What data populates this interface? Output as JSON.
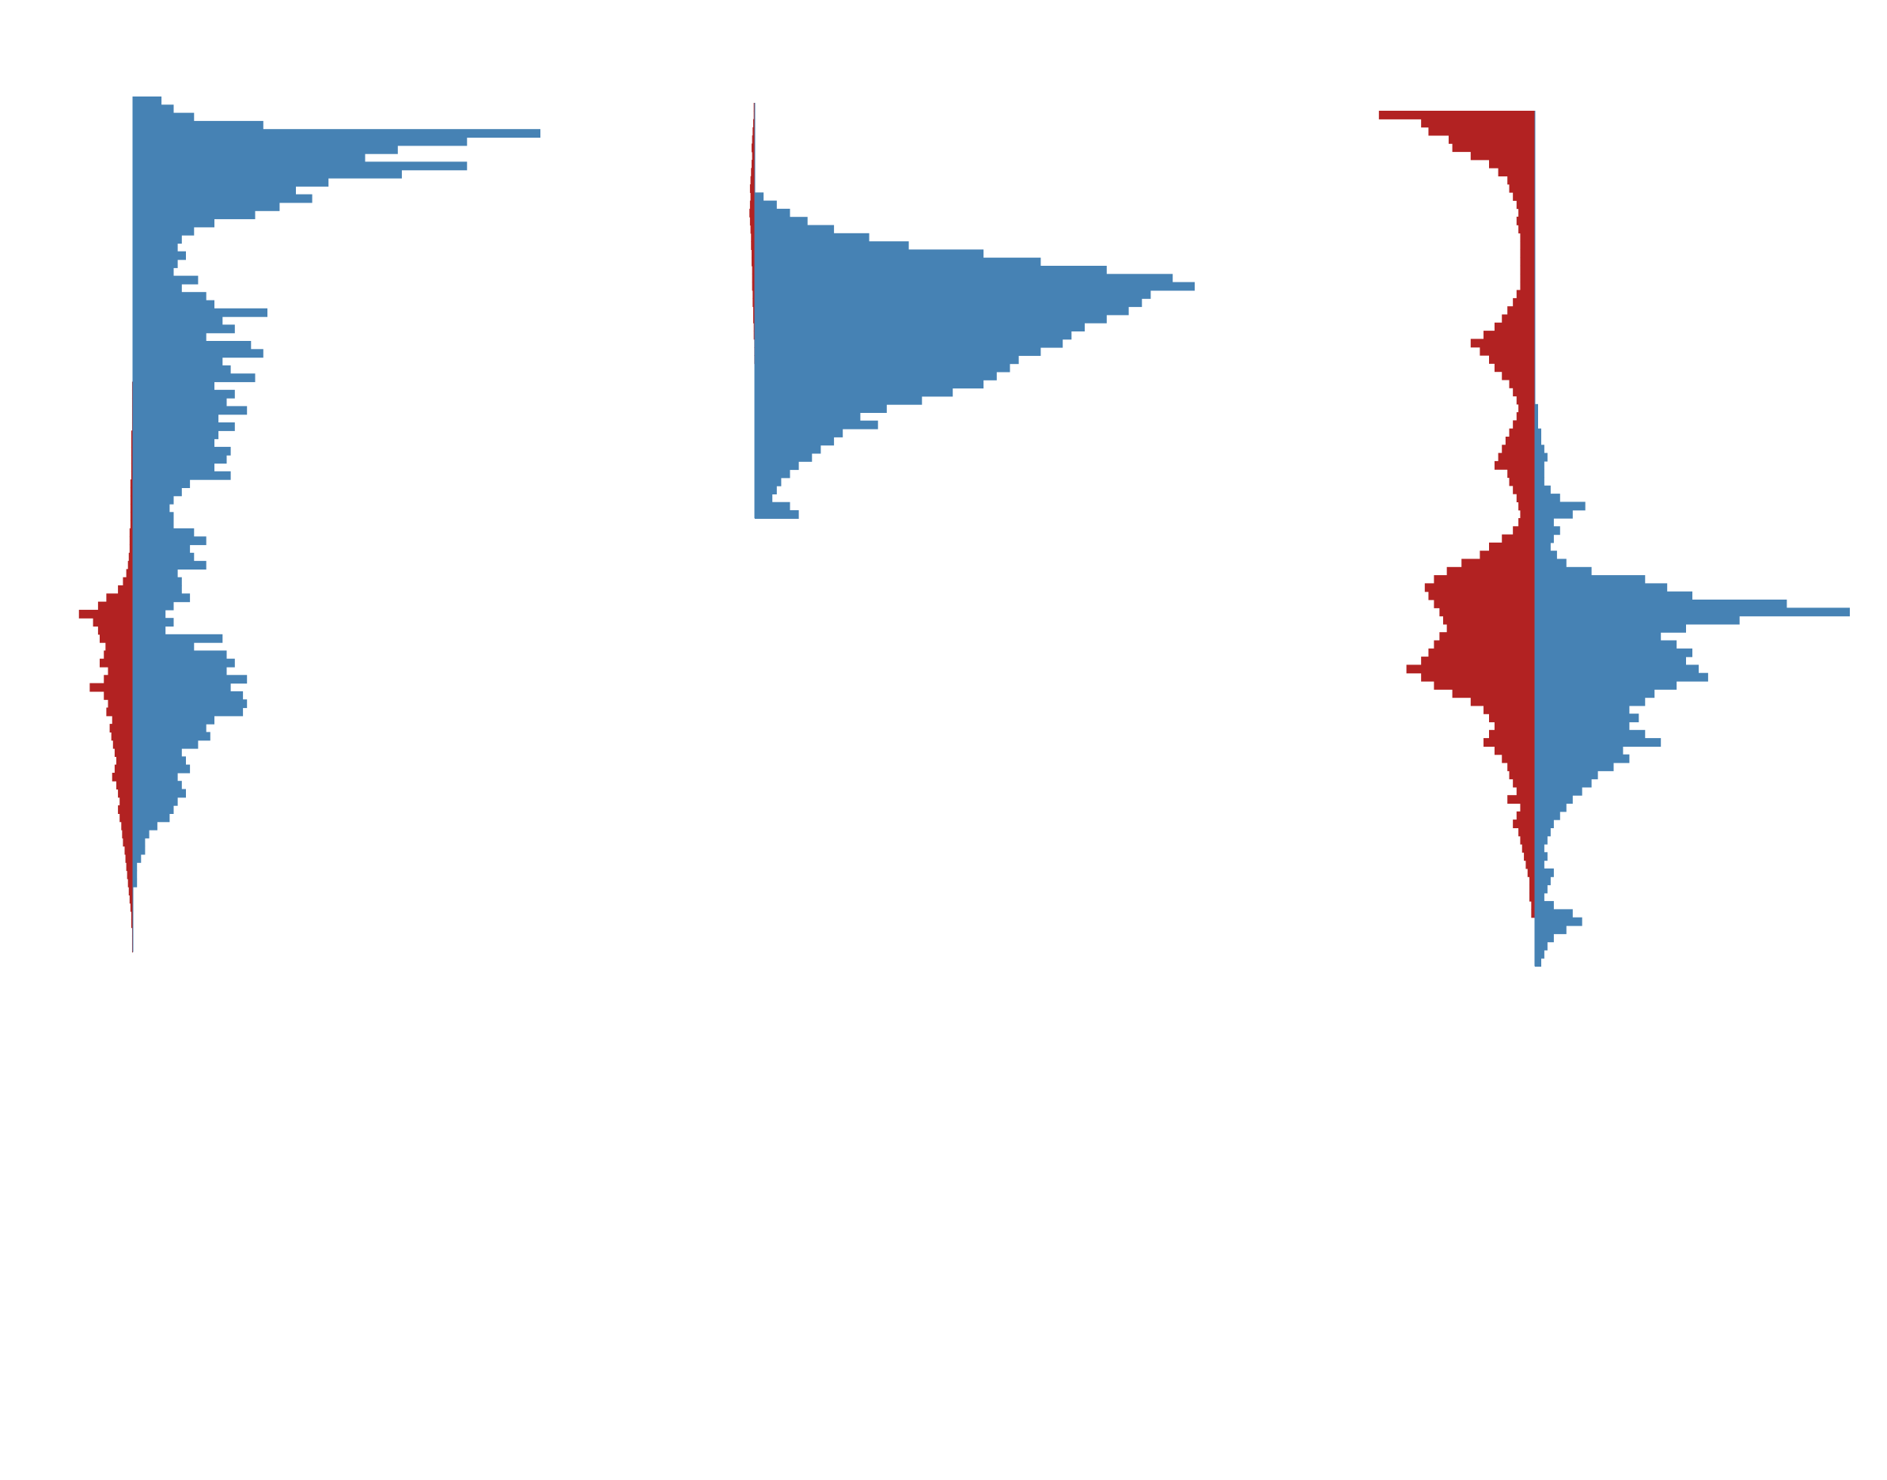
{
  "chart_data": {
    "type": "bar",
    "orientation": "horizontal",
    "layout": "mirrored-violin-histograms",
    "title": "",
    "xlabel": "",
    "ylabel": "",
    "grid": false,
    "colors": {
      "positive": "#4682b4",
      "negative": "#b22222"
    },
    "panels": [
      {
        "series": [
          {
            "side": "right",
            "color": "#4682b4",
            "range": [
              3,
              93
            ],
            "values": [
              7,
              10,
              15,
              32,
              100,
              82,
              65,
              57,
              82,
              66,
              48,
              40,
              44,
              36,
              30,
              20,
              15,
              12,
              11,
              13,
              11,
              10,
              16,
              12,
              18,
              20,
              33,
              22,
              25,
              18,
              29,
              32,
              22,
              24,
              30,
              20,
              25,
              23,
              28,
              21,
              25,
              21,
              20,
              24,
              23,
              20,
              24,
              14,
              12,
              10,
              9,
              10,
              10,
              15,
              18,
              14,
              15,
              18,
              11,
              12,
              12,
              14,
              10,
              8,
              10,
              8,
              22,
              15,
              23,
              25,
              23,
              28,
              24,
              27,
              28,
              27,
              20,
              18,
              19,
              16,
              12,
              13,
              14,
              11,
              12,
              13,
              11,
              10,
              9,
              6,
              4,
              3,
              3,
              2,
              1,
              1,
              1,
              0,
              0,
              0,
              0,
              0,
              0,
              0,
              0,
              0,
              0,
              0,
              0,
              0
            ]
          },
          {
            "side": "left",
            "color": "#b22222",
            "range": [
              38,
              108
            ],
            "values": [
              1,
              1,
              1,
              1,
              1,
              1,
              2,
              2,
              2,
              2,
              2,
              2,
              3,
              3,
              3,
              3,
              3,
              3,
              4,
              4,
              4,
              5,
              6,
              8,
              12,
              18,
              32,
              42,
              65,
              48,
              42,
              40,
              33,
              35,
              40,
              30,
              35,
              52,
              35,
              30,
              32,
              25,
              28,
              26,
              24,
              22,
              20,
              22,
              25,
              20,
              18,
              16,
              18,
              16,
              14,
              13,
              12,
              10,
              9,
              8,
              7,
              6,
              5,
              4,
              3,
              2,
              2,
              1,
              1,
              1
            ]
          }
        ]
      },
      {
        "series": [
          {
            "side": "right",
            "color": "#4682b4",
            "range": [
              24,
              64
            ],
            "values": [
              2,
              5,
              8,
              12,
              18,
              26,
              35,
              52,
              65,
              80,
              95,
              100,
              90,
              88,
              85,
              80,
              75,
              72,
              70,
              65,
              60,
              58,
              55,
              52,
              45,
              38,
              30,
              24,
              28,
              20,
              18,
              15,
              13,
              10,
              8,
              6,
              5,
              4,
              8,
              10
            ]
          },
          {
            "side": "left",
            "color": "#b22222",
            "range": [
              13,
              45
            ],
            "values": [
              2,
              2,
              3,
              4,
              5,
              6,
              5,
              6,
              7,
              8,
              9,
              8,
              9,
              10,
              9,
              8,
              7,
              7,
              6,
              6,
              5,
              5,
              5,
              4,
              4,
              3,
              3,
              2,
              2,
              1,
              1,
              1
            ]
          }
        ]
      },
      {
        "series": [
          {
            "side": "right",
            "color": "#4682b4",
            "range": [
              48,
              117
            ],
            "values": [
              1,
              1,
              1,
              2,
              2,
              3,
              4,
              3,
              3,
              3,
              5,
              8,
              16,
              12,
              6,
              8,
              6,
              5,
              7,
              10,
              18,
              35,
              42,
              50,
              80,
              100,
              65,
              48,
              40,
              45,
              50,
              48,
              52,
              55,
              45,
              38,
              35,
              30,
              33,
              30,
              35,
              40,
              28,
              30,
              25,
              20,
              18,
              15,
              12,
              10,
              8,
              6,
              5,
              4,
              3,
              4,
              3,
              6,
              5,
              4,
              3,
              6,
              12,
              15,
              10,
              6,
              4,
              3,
              2
            ]
          },
          {
            "side": "left",
            "color": "#b22222",
            "range": [
              12,
              111
            ],
            "values": [
              85,
              62,
              58,
              47,
              45,
              35,
              25,
              20,
              15,
              14,
              12,
              10,
              9,
              10,
              9,
              8,
              8,
              8,
              8,
              8,
              8,
              8,
              10,
              12,
              15,
              18,
              22,
              28,
              35,
              30,
              25,
              22,
              18,
              14,
              12,
              10,
              9,
              10,
              12,
              14,
              16,
              18,
              20,
              22,
              15,
              14,
              12,
              10,
              9,
              8,
              9,
              12,
              18,
              25,
              30,
              40,
              48,
              55,
              60,
              58,
              55,
              52,
              50,
              48,
              52,
              55,
              58,
              62,
              70,
              62,
              55,
              45,
              35,
              28,
              25,
              22,
              25,
              28,
              22,
              18,
              15,
              14,
              12,
              10,
              15,
              8,
              10,
              12,
              9,
              8,
              7,
              6,
              5,
              4,
              3,
              3,
              3,
              2,
              2
            ]
          }
        ]
      }
    ]
  }
}
